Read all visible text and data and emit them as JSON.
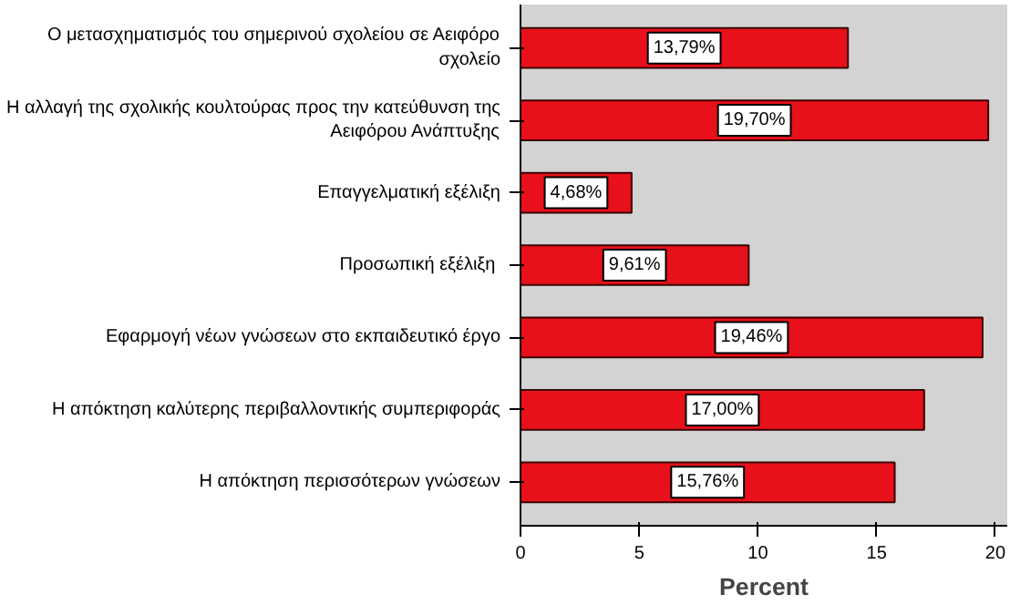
{
  "chart_data": {
    "type": "bar",
    "orientation": "horizontal",
    "xlabel": "Percent",
    "categories": [
      "Ο μετασχηματισμός του σημερινού σχολείου σε Αειφόρο\nσχολείο",
      "Η αλλαγή της σχολικής κουλτούρας προς την κατεύθυνση της\nΑειφόρου Ανάπτυξης",
      "Επαγγελματική εξέλιξη",
      "Προσωπική  εξέλιξη",
      "Εφαρμογή νέων γνώσεων στο εκπαιδευτικό έργο",
      "Η απόκτηση καλύτερης περιβαλλοντικής συμπεριφοράς",
      "Η απόκτηση περισσότερων γνώσεων"
    ],
    "values": [
      13.79,
      19.7,
      4.68,
      9.61,
      19.46,
      17.0,
      15.76
    ],
    "value_labels": [
      "13,79%",
      "19,70%",
      "4,68%",
      "9,61%",
      "19,46%",
      "17,00%",
      "15,76%"
    ],
    "color": "#e8101a",
    "xlim": [
      0,
      20.5
    ],
    "xticks": [
      0,
      5,
      10,
      15,
      20
    ],
    "grid": false
  }
}
